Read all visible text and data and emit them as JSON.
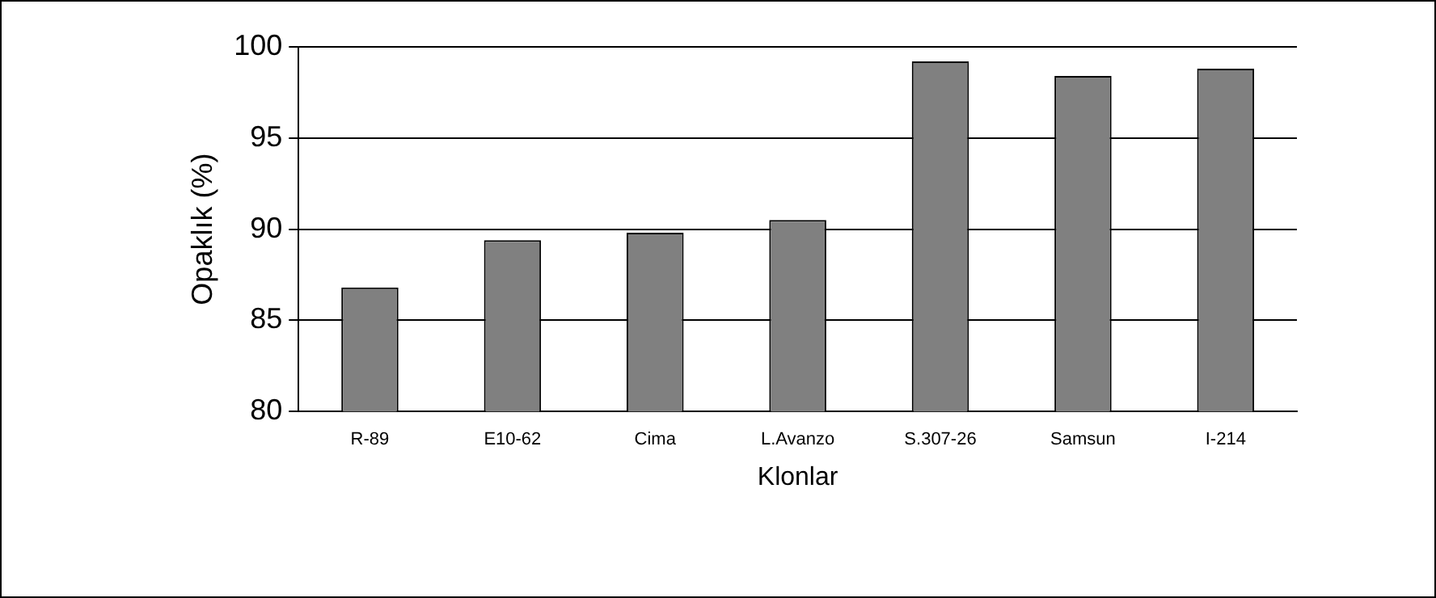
{
  "chart_data": {
    "type": "bar",
    "xlabel": "Klonlar",
    "ylabel": "Opaklık (%)",
    "categories": [
      "R-89",
      "E10-62",
      "Cima",
      "L.Avanzo",
      "S.307-26",
      "Samsun",
      "I-214"
    ],
    "values": [
      86.8,
      89.4,
      89.8,
      90.5,
      99.2,
      98.4,
      98.8
    ],
    "color": "#808080",
    "ylim": [
      80,
      100
    ],
    "yticks": [
      80,
      85,
      90,
      95,
      100
    ],
    "grid": "y",
    "legend": false
  }
}
